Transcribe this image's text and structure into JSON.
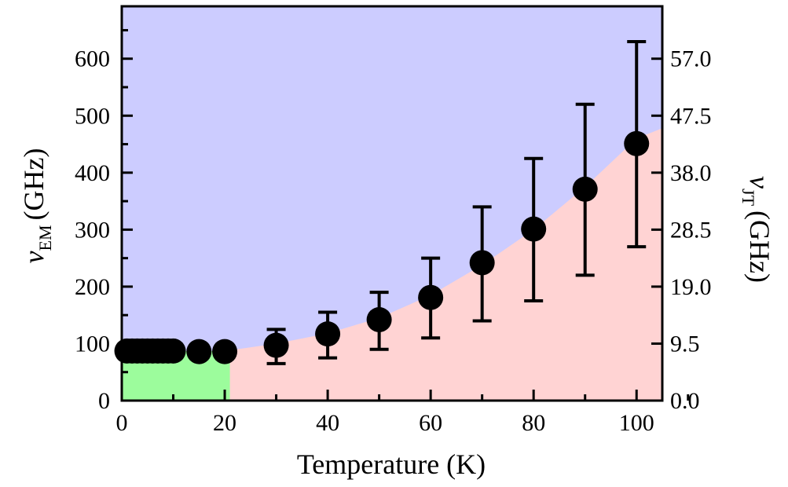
{
  "chart_data": {
    "type": "scatter",
    "xlabel": "Temperature (K)",
    "ylabel_symbol": "ν",
    "ylabel_sub": "EM",
    "ylabel_unit": "(GHz)",
    "y2label_symbol": "ν",
    "y2label_sub": "JT",
    "y2label_unit": "(GHz)",
    "xlim": [
      0,
      105
    ],
    "ylim": [
      0,
      692
    ],
    "xticks": [
      0,
      20,
      40,
      60,
      80,
      100
    ],
    "yticks": [
      0,
      100,
      200,
      300,
      400,
      500,
      600
    ],
    "y2ticks": [
      "0.0",
      "9.5",
      "19.0",
      "28.5",
      "38.0",
      "47.5",
      "57.0"
    ],
    "y2_scale": 0.095,
    "grid": false,
    "colors": {
      "upper_region": "#ccccff",
      "lower_region": "#ffd3d3",
      "green_region": "#9cfc9c",
      "points": "#000000"
    },
    "green_region": {
      "x": [
        0,
        21
      ],
      "y": [
        0,
        87
      ]
    },
    "boundary": {
      "x": [
        0,
        20,
        30,
        40,
        50,
        60,
        70,
        80,
        90,
        100,
        105
      ],
      "y": [
        85,
        87,
        100,
        118,
        145,
        185,
        238,
        300,
        375,
        460,
        478
      ]
    },
    "points": [
      {
        "x": 1,
        "y": 87,
        "lo": 75,
        "hi": 99
      },
      {
        "x": 2,
        "y": 87,
        "lo": 75,
        "hi": 99
      },
      {
        "x": 3,
        "y": 87,
        "lo": 75,
        "hi": 99
      },
      {
        "x": 4,
        "y": 87,
        "lo": 75,
        "hi": 99
      },
      {
        "x": 5,
        "y": 87,
        "lo": 75,
        "hi": 99
      },
      {
        "x": 6,
        "y": 87,
        "lo": 75,
        "hi": 99
      },
      {
        "x": 7,
        "y": 87,
        "lo": 75,
        "hi": 99
      },
      {
        "x": 8,
        "y": 87,
        "lo": 75,
        "hi": 99
      },
      {
        "x": 9,
        "y": 87,
        "lo": 75,
        "hi": 99
      },
      {
        "x": 10,
        "y": 87,
        "lo": 75,
        "hi": 99
      },
      {
        "x": 15,
        "y": 86,
        "lo": 74,
        "hi": 98
      },
      {
        "x": 20,
        "y": 86,
        "lo": 74,
        "hi": 98
      },
      {
        "x": 30,
        "y": 97,
        "lo": 65,
        "hi": 125
      },
      {
        "x": 40,
        "y": 117,
        "lo": 75,
        "hi": 155
      },
      {
        "x": 50,
        "y": 142,
        "lo": 90,
        "hi": 190
      },
      {
        "x": 60,
        "y": 181,
        "lo": 110,
        "hi": 250
      },
      {
        "x": 70,
        "y": 242,
        "lo": 140,
        "hi": 340
      },
      {
        "x": 80,
        "y": 301,
        "lo": 175,
        "hi": 425
      },
      {
        "x": 90,
        "y": 371,
        "lo": 220,
        "hi": 520
      },
      {
        "x": 100,
        "y": 451,
        "lo": 270,
        "hi": 630
      }
    ]
  }
}
